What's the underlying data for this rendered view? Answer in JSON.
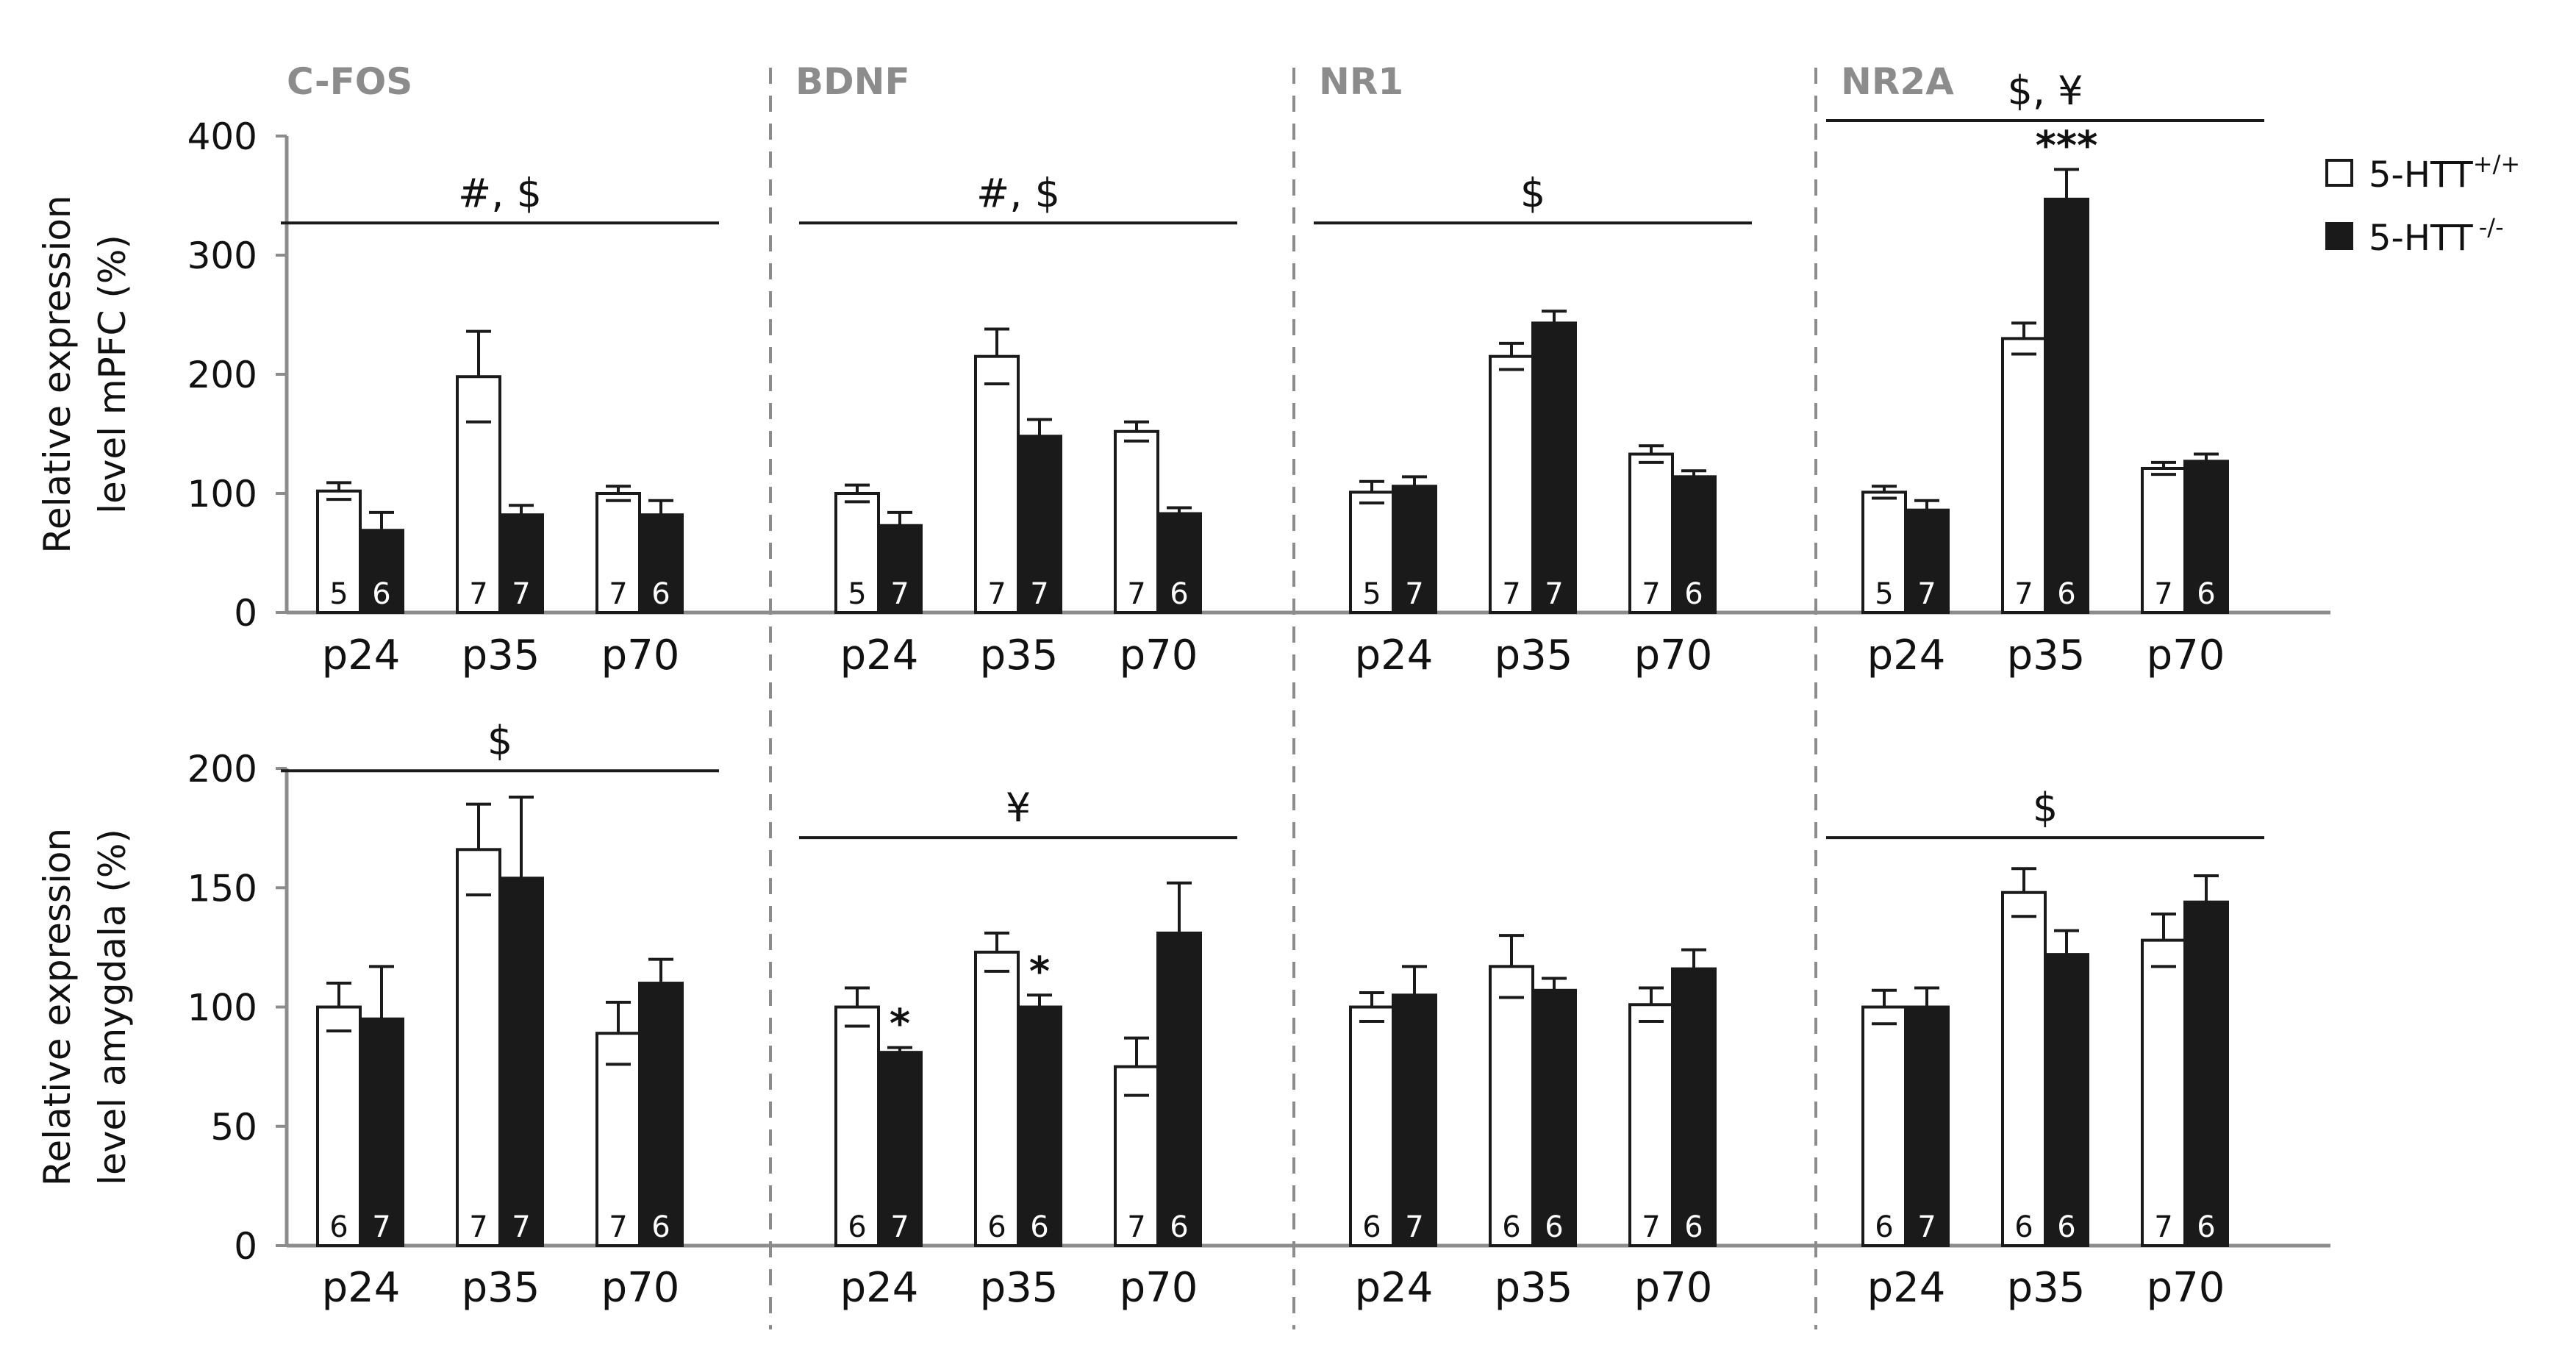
{
  "chart_data": [
    {
      "type": "bar",
      "row": "mPFC",
      "ylabel_line1": "Relative expression",
      "ylabel_line2": "level mPFC (%)",
      "ylim": [
        0,
        400
      ],
      "yticks": [
        "0",
        "100",
        "200",
        "300",
        "400"
      ],
      "panels": [
        {
          "title": "C-FOS",
          "categories": [
            "p24",
            "p35",
            "p70"
          ],
          "series": [
            {
              "name": "5-HTT+/+",
              "values": [
                102,
                198,
                100
              ],
              "errors": [
                7,
                38,
                6
              ],
              "n": [
                "5",
                "7",
                "7"
              ],
              "stars": [
                "",
                "",
                ""
              ]
            },
            {
              "name": "5-HTT-/-",
              "values": [
                69,
                82,
                82
              ],
              "errors": [
                15,
                8,
                12
              ],
              "n": [
                "6",
                "7",
                "6"
              ],
              "stars": [
                "",
                "",
                ""
              ]
            }
          ],
          "significance": {
            "label": "#, $",
            "from": 0,
            "to": 2,
            "at": 327
          }
        },
        {
          "title": "BDNF",
          "categories": [
            "p24",
            "p35",
            "p70"
          ],
          "series": [
            {
              "name": "5-HTT+/+",
              "values": [
                100,
                215,
                152
              ],
              "errors": [
                7,
                23,
                8
              ],
              "n": [
                "5",
                "7",
                "7"
              ],
              "stars": [
                "",
                "",
                ""
              ]
            },
            {
              "name": "5-HTT-/-",
              "values": [
                73,
                148,
                83
              ],
              "errors": [
                11,
                14,
                5
              ],
              "n": [
                "7",
                "7",
                "6"
              ],
              "stars": [
                "",
                "",
                ""
              ]
            }
          ],
          "significance": {
            "label": "#, $",
            "from": 0,
            "to": 2,
            "at": 327
          }
        },
        {
          "title": "NR1",
          "categories": [
            "p24",
            "p35",
            "p70"
          ],
          "series": [
            {
              "name": "5-HTT+/+",
              "values": [
                101,
                215,
                133
              ],
              "errors": [
                9,
                11,
                7
              ],
              "n": [
                "5",
                "7",
                "7"
              ],
              "stars": [
                "",
                "",
                ""
              ]
            },
            {
              "name": "5-HTT-/-",
              "values": [
                106,
                243,
                114
              ],
              "errors": [
                8,
                10,
                5
              ],
              "n": [
                "7",
                "7",
                "6"
              ],
              "stars": [
                "",
                "",
                ""
              ]
            }
          ],
          "significance": {
            "label": "$",
            "from": 0,
            "to": 2,
            "at": 327
          }
        },
        {
          "title": "NR2A",
          "categories": [
            "p24",
            "p35",
            "p70"
          ],
          "series": [
            {
              "name": "5-HTT+/+",
              "values": [
                101,
                230,
                121
              ],
              "errors": [
                5,
                13,
                5
              ],
              "n": [
                "5",
                "7",
                "7"
              ],
              "stars": [
                "",
                "",
                ""
              ]
            },
            {
              "name": "5-HTT-/-",
              "values": [
                86,
                347,
                127
              ],
              "errors": [
                8,
                25,
                6
              ],
              "n": [
                "7",
                "6",
                "6"
              ],
              "stars": [
                "",
                "***",
                ""
              ]
            }
          ],
          "significance": {
            "label": "$, ¥",
            "from": 0,
            "to": 2,
            "at": 413
          }
        }
      ]
    },
    {
      "type": "bar",
      "row": "amygdala",
      "ylabel_line1": "Relative expression",
      "ylabel_line2": "level amygdala (%)",
      "ylim": [
        0,
        200
      ],
      "yticks": [
        "0",
        "50",
        "100",
        "150",
        "200"
      ],
      "panels": [
        {
          "title": "C-FOS",
          "categories": [
            "p24",
            "p35",
            "p70"
          ],
          "series": [
            {
              "name": "5-HTT+/+",
              "values": [
                100,
                166,
                89
              ],
              "errors": [
                10,
                19,
                13
              ],
              "n": [
                "6",
                "7",
                "7"
              ],
              "stars": [
                "",
                "",
                ""
              ]
            },
            {
              "name": "5-HTT-/-",
              "values": [
                95,
                154,
                110
              ],
              "errors": [
                22,
                34,
                10
              ],
              "n": [
                "7",
                "7",
                "6"
              ],
              "stars": [
                "",
                "",
                ""
              ]
            }
          ],
          "significance": {
            "label": "$",
            "from": 0,
            "to": 2,
            "at": 199
          }
        },
        {
          "title": "BDNF",
          "categories": [
            "p24",
            "p35",
            "p70"
          ],
          "series": [
            {
              "name": "5-HTT+/+",
              "values": [
                100,
                123,
                75
              ],
              "errors": [
                8,
                8,
                12
              ],
              "n": [
                "6",
                "6",
                "7"
              ],
              "stars": [
                "",
                "",
                ""
              ]
            },
            {
              "name": "5-HTT-/-",
              "values": [
                81,
                100,
                131
              ],
              "errors": [
                2,
                5,
                21
              ],
              "n": [
                "7",
                "6",
                "6"
              ],
              "stars": [
                "*",
                "*",
                ""
              ]
            }
          ],
          "significance": {
            "label": "¥",
            "from": 0,
            "to": 2,
            "at": 171
          }
        },
        {
          "title": "NR1",
          "categories": [
            "p24",
            "p35",
            "p70"
          ],
          "series": [
            {
              "name": "5-HTT+/+",
              "values": [
                100,
                117,
                101
              ],
              "errors": [
                6,
                13,
                7
              ],
              "n": [
                "6",
                "6",
                "7"
              ],
              "stars": [
                "",
                "",
                ""
              ]
            },
            {
              "name": "5-HTT-/-",
              "values": [
                105,
                107,
                116
              ],
              "errors": [
                12,
                5,
                8
              ],
              "n": [
                "7",
                "6",
                "6"
              ],
              "stars": [
                "",
                "",
                ""
              ]
            }
          ],
          "significance": null
        },
        {
          "title": "NR2A",
          "categories": [
            "p24",
            "p35",
            "p70"
          ],
          "series": [
            {
              "name": "5-HTT+/+",
              "values": [
                100,
                148,
                128
              ],
              "errors": [
                7,
                10,
                11
              ],
              "n": [
                "6",
                "6",
                "7"
              ],
              "stars": [
                "",
                "",
                ""
              ]
            },
            {
              "name": "5-HTT-/-",
              "values": [
                100,
                122,
                144
              ],
              "errors": [
                8,
                10,
                11
              ],
              "n": [
                "7",
                "6",
                "6"
              ],
              "stars": [
                "",
                "",
                ""
              ]
            }
          ],
          "significance": {
            "label": "$",
            "from": 0,
            "to": 2,
            "at": 171
          }
        }
      ]
    }
  ],
  "legend": {
    "wt_base": "5-HTT",
    "wt_sup": "+/+",
    "ko_base": "5-HTT",
    "ko_sup": "-/-"
  },
  "colors": {
    "wt_fill": "#ffffff",
    "ko_fill": "#1a1a1a",
    "axis": "#8c8c8c",
    "divider": "#8c8c8c",
    "title": "#8c8c8c"
  }
}
